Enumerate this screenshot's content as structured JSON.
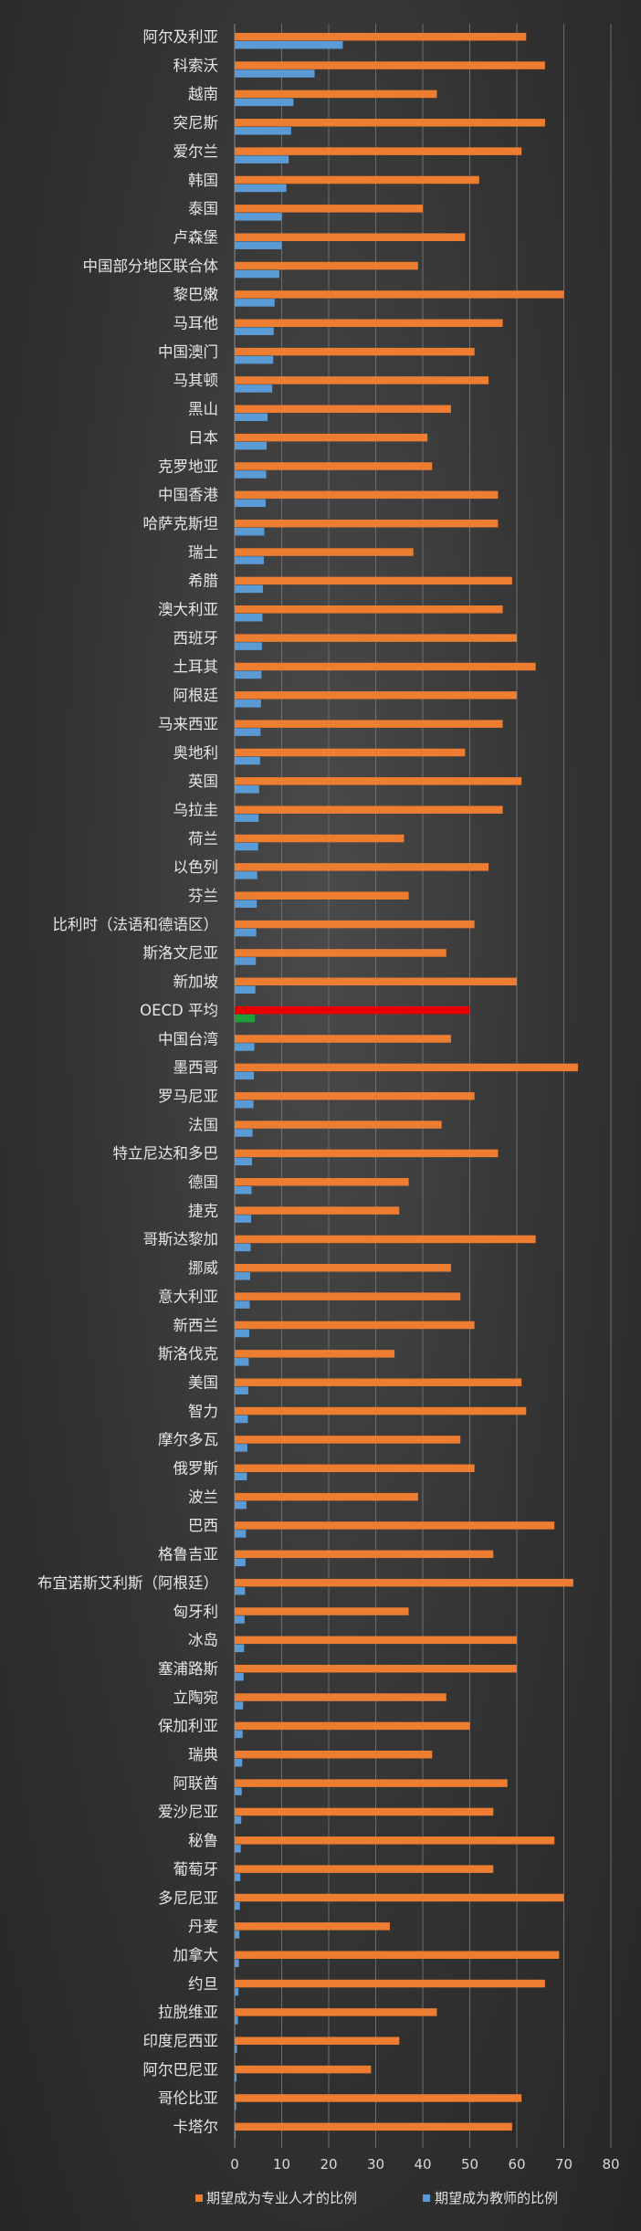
{
  "chart_data": {
    "type": "bar",
    "orientation": "horizontal",
    "title": "",
    "xlabel": "",
    "ylabel": "",
    "xlim": [
      0,
      80
    ],
    "xticks": [
      0,
      10,
      20,
      30,
      40,
      50,
      60,
      70,
      80
    ],
    "grid": true,
    "legend_position": "bottom",
    "categories": [
      "阿尔及利亚",
      "科索沃",
      "越南",
      "突尼斯",
      "爱尔兰",
      "韩国",
      "泰国",
      "卢森堡",
      "中国部分地区联合体",
      "黎巴嫩",
      "马耳他",
      "中国澳门",
      "马其顿",
      "黑山",
      "日本",
      "克罗地亚",
      "中国香港",
      "哈萨克斯坦",
      "瑞士",
      "希腊",
      "澳大利亚",
      "西班牙",
      "土耳其",
      "阿根廷",
      "马来西亚",
      "奥地利",
      "英国",
      "乌拉圭",
      "荷兰",
      "以色列",
      "芬兰",
      "比利时（法语和德语区）",
      "斯洛文尼亚",
      "新加坡",
      "OECD 平均",
      "中国台湾",
      "墨西哥",
      "罗马尼亚",
      "法国",
      "特立尼达和多巴",
      "德国",
      "捷克",
      "哥斯达黎加",
      "挪威",
      "意大利亚",
      "新西兰",
      "斯洛伐克",
      "美国",
      "智力",
      "摩尔多瓦",
      "俄罗斯",
      "波兰",
      "巴西",
      "格鲁吉亚",
      "布宜诺斯艾利斯（阿根廷）",
      "匈牙利",
      "冰岛",
      "塞浦路斯",
      "立陶宛",
      "保加利亚",
      "瑞典",
      "阿联酋",
      "爱沙尼亚",
      "秘鲁",
      "葡萄牙",
      "多尼尼亚",
      "丹麦",
      "加拿大",
      "约旦",
      "拉脱维亚",
      "印度尼西亚",
      "阿尔巴尼亚",
      "哥伦比亚",
      "卡塔尔"
    ],
    "highlight_category": "OECD 平均",
    "highlight_colors": [
      "#e60000",
      "#1f9e3c"
    ],
    "series": [
      {
        "name": "期望成为专业人才的比例",
        "color": "#ed7d31",
        "values": [
          62,
          66,
          43,
          66,
          61,
          52,
          40,
          49,
          39,
          70,
          57,
          51,
          54,
          46,
          41,
          42,
          56,
          56,
          38,
          59,
          57,
          60,
          64,
          60,
          57,
          49,
          61,
          57,
          36,
          54,
          37,
          51,
          45,
          60,
          50,
          46,
          73,
          51,
          44,
          56,
          37,
          35,
          64,
          46,
          48,
          51,
          34,
          61,
          62,
          48,
          51,
          39,
          68,
          55,
          72,
          37,
          60,
          60,
          45,
          50,
          42,
          58,
          55,
          68,
          55,
          70,
          33,
          69,
          66,
          43,
          35,
          29,
          61,
          59
        ]
      },
      {
        "name": "期望成为教师的比例",
        "color": "#5b9bd5",
        "values": [
          23,
          17,
          12.5,
          12,
          11.5,
          11,
          10,
          10,
          9.5,
          8.5,
          8.3,
          8.2,
          8,
          7,
          6.8,
          6.7,
          6.6,
          6.3,
          6.2,
          6,
          5.9,
          5.8,
          5.7,
          5.6,
          5.5,
          5.4,
          5.2,
          5.1,
          5,
          4.8,
          4.7,
          4.6,
          4.5,
          4.4,
          4.3,
          4.2,
          4.1,
          4,
          3.8,
          3.7,
          3.6,
          3.5,
          3.4,
          3.3,
          3.2,
          3.1,
          3,
          2.9,
          2.8,
          2.7,
          2.6,
          2.5,
          2.4,
          2.3,
          2.2,
          2.1,
          2,
          1.9,
          1.8,
          1.7,
          1.6,
          1.5,
          1.4,
          1.3,
          1.2,
          1.1,
          1,
          0.9,
          0.8,
          0.7,
          0.5,
          0.4,
          0.3,
          0.2
        ]
      }
    ]
  }
}
